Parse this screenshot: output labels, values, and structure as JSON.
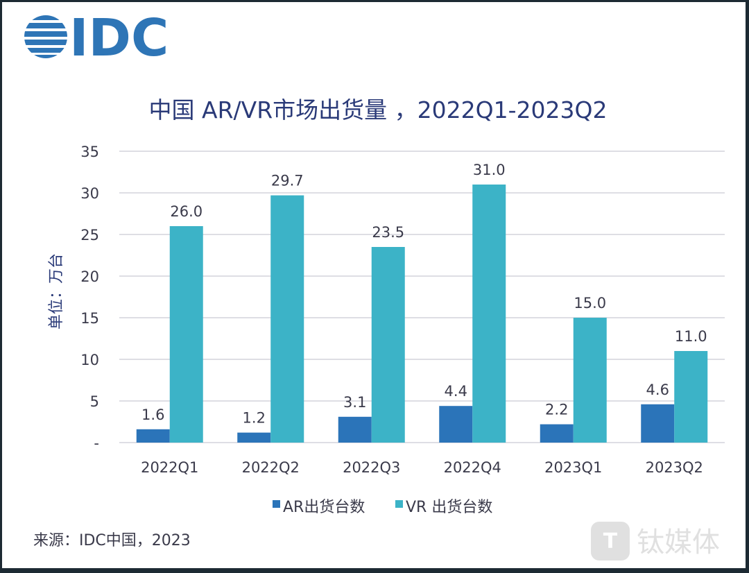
{
  "logo": {
    "text": "IDC",
    "color": "#2e75b6"
  },
  "chart_data": {
    "type": "bar",
    "title": "中国 AR/VR市场出货量 ，2022Q1-2023Q2",
    "ylabel": "单位：万台",
    "xlabel": "",
    "categories": [
      "2022Q1",
      "2022Q2",
      "2022Q3",
      "2022Q4",
      "2023Q1",
      "2023Q2"
    ],
    "series": [
      {
        "name": "AR出货台数",
        "values": [
          1.6,
          1.2,
          3.1,
          4.4,
          2.2,
          4.6
        ],
        "color": "#2b74b9"
      },
      {
        "name": "VR 出货台数",
        "values": [
          26.0,
          29.7,
          23.5,
          31.0,
          15.0,
          11.0
        ],
        "color": "#3cb3c7"
      }
    ],
    "ylim": [
      0,
      35
    ],
    "yticks": [
      "-",
      "5",
      "10",
      "15",
      "20",
      "25",
      "30",
      "35"
    ],
    "grid": true,
    "legend": "bottom"
  },
  "source": "来源：IDC中国，2023",
  "watermark": "钛媒体"
}
